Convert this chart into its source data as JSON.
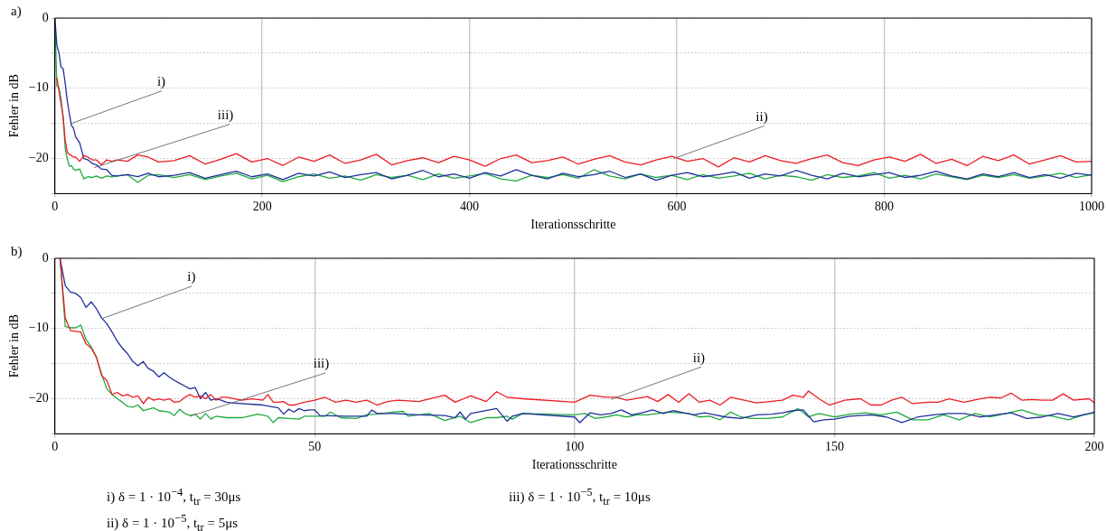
{
  "chart_data": [
    {
      "type": "line",
      "title": "a)",
      "xlabel": "Iterationsschritte",
      "ylabel": "Fehler in dB",
      "xlim": [
        0,
        1000
      ],
      "xticks": [
        0,
        200,
        400,
        600,
        800,
        1000
      ],
      "ylim": [
        -25,
        0
      ],
      "yticks": [
        0,
        {
          "value": -5,
          "label": null
        },
        -10,
        {
          "value": -15,
          "label": null
        },
        -20,
        {
          "value": -25,
          "label": null
        }
      ],
      "grid": true,
      "legend": false,
      "x": [
        0,
        2,
        4,
        6,
        8,
        10,
        12,
        14,
        16,
        18,
        20,
        24,
        28,
        32,
        36,
        40,
        45,
        50,
        55,
        60,
        70,
        80,
        90,
        100,
        115,
        130,
        145,
        160,
        175,
        190,
        205,
        220,
        235,
        250,
        265,
        280,
        295,
        310,
        325,
        340,
        355,
        370,
        385,
        400,
        415,
        430,
        445,
        460,
        475,
        490,
        505,
        520,
        535,
        550,
        565,
        580,
        595,
        610,
        625,
        640,
        655,
        670,
        685,
        700,
        715,
        730,
        745,
        760,
        775,
        790,
        805,
        820,
        835,
        850,
        865,
        880,
        895,
        910,
        925,
        940,
        955,
        970,
        985,
        1000
      ],
      "series": [
        {
          "color": "#ee1c25",
          "values": [
            null,
            -8.5,
            -10.4,
            -12.2,
            -14.1,
            -17.4,
            -19.1,
            -19.4,
            -19.6,
            -19.8,
            -19.8,
            -20.4,
            -19.6,
            -19.8,
            -20.2,
            -20.2,
            -20.9,
            -20.2,
            -20.4,
            -20.2,
            -20.4,
            -19.5,
            -19.8,
            -20.5,
            -20.3,
            -19.6,
            -20.8,
            -20.1,
            -19.3,
            -20.5,
            -20.0,
            -21.0,
            -19.8,
            -20.4,
            -19.5,
            -20.7,
            -20.2,
            -19.4,
            -20.9,
            -20.3,
            -19.9,
            -20.6,
            -19.7,
            -20.2,
            -21.1,
            -20.0,
            -19.5,
            -20.6,
            -20.3,
            -19.8,
            -20.8,
            -20.1,
            -19.6,
            -20.5,
            -20.9,
            -20.2,
            -19.7,
            -20.4,
            -20.0,
            -21.2,
            -19.9,
            -20.5,
            -19.6,
            -20.3,
            -20.7,
            -20.0,
            -19.5,
            -20.6,
            -21.0,
            -20.2,
            -19.8,
            -20.4,
            -19.4,
            -20.7,
            -20.1,
            -21.0,
            -19.7,
            -20.3,
            -19.5,
            -20.8,
            -20.2,
            -19.6,
            -20.5,
            -20.4
          ]
        },
        {
          "color": "#1f2f9a",
          "values": [
            0,
            -3.9,
            -5,
            -7,
            -7.2,
            -9.3,
            -11.8,
            -13.6,
            -15.3,
            -15.7,
            -16.9,
            -17.8,
            -20,
            -20.2,
            -20.7,
            -20.9,
            -21.5,
            -21.6,
            -22.4,
            -22.5,
            -22.3,
            -22.6,
            -22.1,
            -22.6,
            -22.4,
            -22.0,
            -22.8,
            -22.3,
            -21.8,
            -22.6,
            -22.2,
            -23.0,
            -22.1,
            -22.5,
            -21.9,
            -22.7,
            -22.3,
            -22.0,
            -22.9,
            -22.4,
            -21.7,
            -22.6,
            -22.2,
            -22.8,
            -22.0,
            -22.5,
            -21.6,
            -22.4,
            -22.9,
            -22.1,
            -22.6,
            -22.3,
            -21.8,
            -22.7,
            -22.2,
            -23.1,
            -22.4,
            -22.0,
            -22.6,
            -22.3,
            -21.9,
            -22.8,
            -22.2,
            -22.5,
            -21.7,
            -22.4,
            -22.9,
            -22.1,
            -22.6,
            -22.3,
            -22.0,
            -22.7,
            -22.4,
            -21.8,
            -22.5,
            -22.9,
            -22.2,
            -22.6,
            -22.0,
            -22.7,
            -22.3,
            -22.8,
            -22.1,
            -22.4
          ]
        },
        {
          "color": "#1faa3f",
          "values": [
            0,
            -9.7,
            -9.9,
            -11.6,
            -14.1,
            -18.6,
            -20,
            -21.1,
            -21,
            -21.5,
            -21.7,
            -21.5,
            -22.9,
            -22.6,
            -22.7,
            -22.5,
            -22.8,
            -22.5,
            -22.6,
            -22.5,
            -22.3,
            -23.4,
            -22.4,
            -22.3,
            -22.7,
            -22.3,
            -23.0,
            -22.5,
            -22.1,
            -22.9,
            -22.4,
            -23.3,
            -22.6,
            -22.2,
            -22.8,
            -22.5,
            -23.1,
            -22.3,
            -22.7,
            -22.4,
            -23.0,
            -22.2,
            -22.8,
            -22.5,
            -22.1,
            -22.9,
            -23.2,
            -22.4,
            -22.7,
            -22.3,
            -22.8,
            -21.6,
            -22.5,
            -22.9,
            -22.2,
            -22.7,
            -22.4,
            -23.0,
            -22.3,
            -22.8,
            -22.5,
            -22.1,
            -22.9,
            -22.4,
            -22.6,
            -23.1,
            -22.3,
            -22.7,
            -22.5,
            -22.0,
            -22.8,
            -22.4,
            -22.9,
            -22.2,
            -22.6,
            -23.0,
            -22.4,
            -22.7,
            -22.3,
            -22.8,
            -22.5,
            -22.1,
            -22.7,
            -22.3
          ]
        }
      ],
      "annotations": [
        {
          "text": "i)",
          "x": 16,
          "y": -15
        },
        {
          "text": "iii)",
          "x": 38,
          "y": -21.3
        },
        {
          "text": "ii)",
          "x": 597,
          "y": -20
        }
      ]
    },
    {
      "type": "line",
      "title": "b)",
      "xlabel": "Iterationsschritte",
      "ylabel": "Fehler in dB",
      "xlim": [
        0,
        200
      ],
      "xticks": [
        0,
        50,
        100,
        150,
        200
      ],
      "ylim": [
        -25,
        0
      ],
      "yticks": [
        0,
        {
          "value": -5,
          "label": null
        },
        -10,
        {
          "value": -15,
          "label": null
        },
        -20,
        {
          "value": -25,
          "label": null
        }
      ],
      "grid": true,
      "legend": false,
      "series": [
        {
          "color": "#ee1c25",
          "x": [
            1,
            2,
            3,
            4,
            5,
            6,
            7,
            8,
            9,
            10,
            11,
            12,
            13,
            14,
            15,
            16,
            17,
            18,
            19,
            20,
            21,
            22,
            23,
            24,
            25,
            26,
            27,
            28,
            29,
            30,
            31,
            32,
            33,
            36,
            38,
            40,
            41,
            42,
            43,
            44,
            45,
            46,
            48,
            50,
            52,
            54,
            56,
            58,
            60,
            62,
            64,
            66,
            70,
            75,
            77,
            80,
            83,
            85,
            87,
            90,
            100,
            103,
            106,
            108,
            110,
            114,
            116,
            118,
            120,
            122,
            124,
            126,
            128,
            130,
            135,
            140,
            142,
            144,
            145,
            147,
            149,
            152,
            155,
            157,
            159,
            161,
            163,
            165,
            168,
            170,
            172,
            175,
            178,
            180,
            182,
            184,
            186,
            188,
            190,
            192,
            194,
            196,
            199,
            200
          ],
          "values": [
            0,
            -8.5,
            -10.3,
            -10.4,
            -10.5,
            -12.2,
            -12.8,
            -14.1,
            -16.7,
            -17.4,
            -19.4,
            -19.1,
            -19.6,
            -19.4,
            -19.8,
            -19.6,
            -20.7,
            -19.8,
            -20.2,
            -20,
            -20.2,
            -20,
            -20.5,
            -20.4,
            -19.8,
            -19.4,
            -19.8,
            -19.6,
            -20,
            -19.4,
            -20.2,
            -19.8,
            -19.8,
            -20.2,
            -20,
            -20.2,
            -19.4,
            -20.5,
            -20.5,
            -20.4,
            -20.9,
            -20.9,
            -20.5,
            -20.2,
            -19.8,
            -20.5,
            -20.2,
            -20.5,
            -20.2,
            -20.9,
            -20.4,
            -20.2,
            -20.4,
            -19.5,
            -20.5,
            -19.6,
            -20.4,
            -19,
            -19.8,
            -20,
            -20.5,
            -19.5,
            -19.8,
            -19.8,
            -20.2,
            -19.7,
            -20.4,
            -19.4,
            -20.5,
            -19.3,
            -20.5,
            -20.2,
            -20.9,
            -19.8,
            -20.6,
            -20.2,
            -19.5,
            -19.8,
            -18.9,
            -20,
            -20.9,
            -20.2,
            -20,
            -20.9,
            -20.9,
            -20.2,
            -19.8,
            -20.7,
            -20.5,
            -20.5,
            -20,
            -20.5,
            -20,
            -19.8,
            -19.9,
            -19.2,
            -20.2,
            -20.1,
            -20.2,
            -20.2,
            -19.3,
            -20.2,
            -20,
            -20.6
          ]
        },
        {
          "color": "#1f2f9a",
          "x": [
            1,
            2,
            3,
            4,
            5,
            6,
            7,
            8,
            9,
            10,
            11,
            12,
            13,
            14,
            15,
            16,
            17,
            18,
            19,
            20,
            21,
            22,
            23,
            24,
            25,
            26,
            27,
            28,
            29,
            30,
            31,
            32,
            33,
            34,
            40,
            43,
            44,
            45,
            46,
            47,
            48,
            49,
            50,
            51,
            56,
            60,
            61,
            62,
            65,
            70,
            75,
            77,
            78,
            79,
            80,
            85,
            86,
            87,
            88,
            90,
            100,
            101,
            103,
            105,
            107,
            109,
            111,
            113,
            115,
            117,
            119,
            121,
            123,
            125,
            127,
            129,
            132,
            135,
            138,
            140,
            142,
            144,
            146,
            148,
            150,
            153,
            157,
            160,
            163,
            166,
            169,
            172,
            175,
            178,
            181,
            184,
            187,
            190,
            193,
            196,
            199,
            200
          ],
          "values": [
            0,
            -3.9,
            -4.8,
            -5,
            -5.6,
            -7,
            -6.2,
            -7.2,
            -8.5,
            -9.3,
            -10.5,
            -11.8,
            -12.8,
            -13.6,
            -14.7,
            -15.3,
            -14.7,
            -15.7,
            -16.1,
            -16.9,
            -16.3,
            -16.9,
            -17.4,
            -17.8,
            -18.2,
            -18.6,
            -18.4,
            -20,
            -19.1,
            -20.2,
            -20,
            -20.2,
            -20.5,
            -20.6,
            -20.9,
            -21.3,
            -22.2,
            -21.5,
            -21.9,
            -21.4,
            -21.7,
            -21.6,
            -21.6,
            -22.4,
            -22.5,
            -22.5,
            -21.6,
            -22.1,
            -22.1,
            -22.3,
            -22.4,
            -22.7,
            -21.9,
            -22.9,
            -22.1,
            -21.4,
            -22.3,
            -23.2,
            -22.5,
            -22.1,
            -22.6,
            -23.4,
            -22,
            -22.3,
            -22.1,
            -21.6,
            -22.3,
            -22,
            -21.6,
            -22.1,
            -21.7,
            -22,
            -22.3,
            -22,
            -22.3,
            -22.6,
            -22.8,
            -22.3,
            -22.2,
            -22,
            -21.7,
            -21.6,
            -23.3,
            -23,
            -22.9,
            -22.5,
            -22.3,
            -22.6,
            -23.4,
            -22.6,
            -22.3,
            -22.1,
            -22.1,
            -22.6,
            -22.3,
            -22,
            -22.8,
            -22.6,
            -22.1,
            -22.6,
            -22.1,
            -21.9
          ]
        },
        {
          "color": "#1faa3f",
          "x": [
            1,
            2,
            3,
            4,
            5,
            6,
            7,
            8,
            9,
            10,
            11,
            12,
            13,
            14,
            15,
            16,
            17,
            18,
            19,
            20,
            22,
            23,
            24,
            25,
            26,
            27,
            28,
            29,
            30,
            31,
            33,
            36,
            39,
            41,
            42,
            43,
            45,
            47,
            48,
            50,
            52,
            53,
            55,
            58,
            60,
            62,
            65,
            67,
            68,
            70,
            72,
            75,
            78,
            80,
            83,
            85,
            87,
            88,
            90,
            100,
            102,
            104,
            106,
            108,
            110,
            112,
            114,
            116,
            118,
            120,
            122,
            124,
            126,
            128,
            130,
            132,
            134,
            137,
            140,
            143,
            145,
            147,
            150,
            153,
            156,
            159,
            162,
            165,
            168,
            171,
            174,
            177,
            180,
            183,
            186,
            189,
            192,
            195,
            198,
            200
          ],
          "values": [
            0,
            -9.7,
            -9.9,
            -9.9,
            -9.5,
            -11.6,
            -12.6,
            -14.1,
            -16.5,
            -18.6,
            -19.4,
            -20,
            -20.5,
            -21.1,
            -21.2,
            -20.9,
            -21.7,
            -21.5,
            -21.3,
            -21.7,
            -21.9,
            -22.4,
            -21.5,
            -22.1,
            -22.4,
            -22.2,
            -22.9,
            -22.1,
            -22.9,
            -22.5,
            -22.7,
            -22.7,
            -22.2,
            -22.5,
            -23.4,
            -22.7,
            -22.8,
            -22.9,
            -22.5,
            -22.5,
            -22.5,
            -21.9,
            -22.7,
            -22.8,
            -22.3,
            -22.2,
            -21.9,
            -21.8,
            -22.5,
            -22.3,
            -22.1,
            -23.1,
            -22.5,
            -23.4,
            -22.7,
            -22.7,
            -22.5,
            -22.9,
            -22.1,
            -22.3,
            -22.1,
            -22.8,
            -22.6,
            -22.3,
            -22.6,
            -22.3,
            -22.3,
            -22.1,
            -21.9,
            -22,
            -22.1,
            -22.6,
            -22.5,
            -23,
            -21.9,
            -22.6,
            -22.8,
            -22.8,
            -22.6,
            -21.4,
            -22.6,
            -22.1,
            -22.6,
            -22.2,
            -22,
            -22.3,
            -21.9,
            -23,
            -23,
            -22.3,
            -23,
            -22.1,
            -22.6,
            -22.1,
            -21.6,
            -22.3,
            -22.5,
            -23,
            -22.3,
            -22
          ]
        }
      ],
      "annotations": [
        {
          "text": "i)",
          "x": 9,
          "y": -8.6
        },
        {
          "text": "iii)",
          "x": 26,
          "y": -22.5
        },
        {
          "text": "ii)",
          "x": 107,
          "y": -20.1
        },
        "i) δ = 1 · 10$^{−4}$,  t$_{tr}$ = 30μs",
        "iii) δ = 1 · 10$^{−5}$,  t$_{tr}$ = 10μs",
        "ii) δ = 1 · 10$^{−5}$,  t$_{tr}$ = 5μs"
      ]
    }
  ]
}
